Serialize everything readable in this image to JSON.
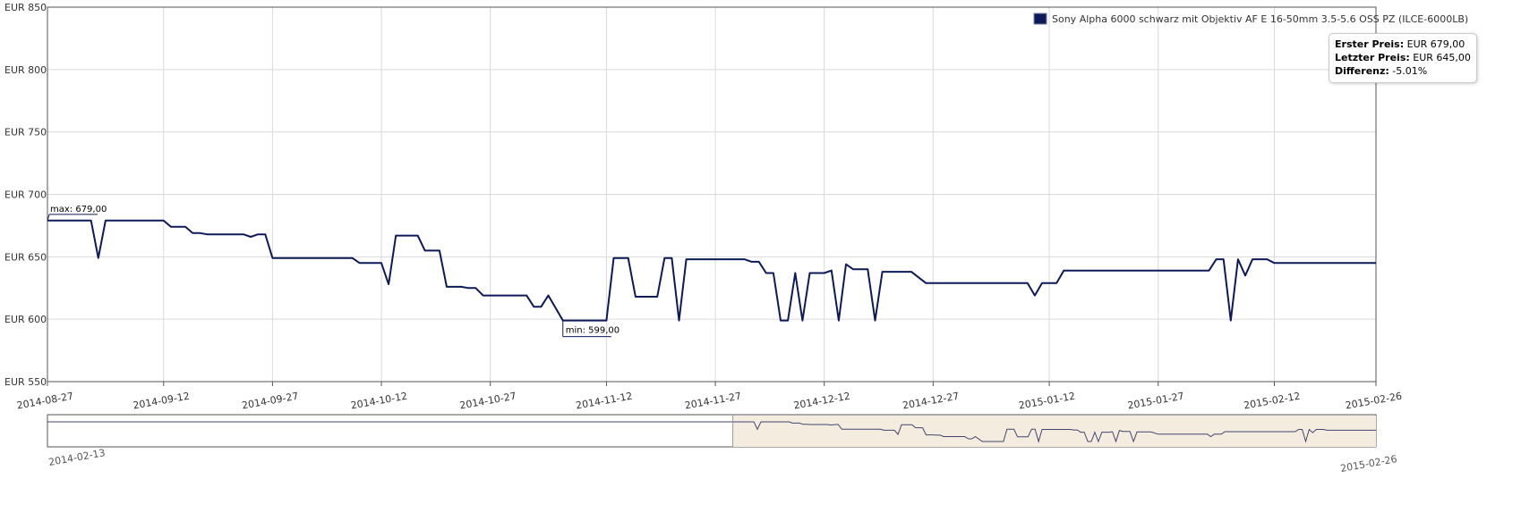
{
  "chart_data": {
    "type": "line",
    "y_tick_labels": [
      "EUR 850",
      "EUR 800",
      "EUR 750",
      "EUR 700",
      "EUR 650",
      "EUR 600",
      "EUR 550"
    ],
    "y_ticks": [
      850,
      800,
      750,
      700,
      650,
      600,
      550
    ],
    "ylim": [
      550,
      850
    ],
    "xlim": [
      "2014-08-27",
      "2015-02-26"
    ],
    "x_tick_labels": [
      "2014-08-27",
      "2014-09-12",
      "2014-09-27",
      "2014-10-12",
      "2014-10-27",
      "2014-11-12",
      "2014-11-27",
      "2014-12-12",
      "2014-12-27",
      "2015-01-12",
      "2015-01-27",
      "2015-02-12",
      "2015-02-26"
    ],
    "grid": true,
    "legend_position": "top-right",
    "series": [
      {
        "name": "Sony Alpha 6000 schwarz mit Objektiv AF E 16-50mm 3.5-5.6 OSS PZ (ILCE-6000LB)",
        "color": "#0d1a59",
        "points": [
          [
            "2014-08-27",
            679
          ],
          [
            "2014-09-02",
            679
          ],
          [
            "2014-09-03",
            649
          ],
          [
            "2014-09-04",
            679
          ],
          [
            "2014-09-12",
            679
          ],
          [
            "2014-09-13",
            674
          ],
          [
            "2014-09-15",
            674
          ],
          [
            "2014-09-16",
            669
          ],
          [
            "2014-09-17",
            669
          ],
          [
            "2014-09-18",
            668
          ],
          [
            "2014-09-23",
            668
          ],
          [
            "2014-09-24",
            666
          ],
          [
            "2014-09-25",
            668
          ],
          [
            "2014-09-26",
            668
          ],
          [
            "2014-09-27",
            649
          ],
          [
            "2014-10-08",
            649
          ],
          [
            "2014-10-09",
            645
          ],
          [
            "2014-10-12",
            645
          ],
          [
            "2014-10-13",
            628
          ],
          [
            "2014-10-14",
            667
          ],
          [
            "2014-10-17",
            667
          ],
          [
            "2014-10-18",
            655
          ],
          [
            "2014-10-20",
            655
          ],
          [
            "2014-10-21",
            626
          ],
          [
            "2014-10-23",
            626
          ],
          [
            "2014-10-24",
            625
          ],
          [
            "2014-10-25",
            625
          ],
          [
            "2014-10-26",
            619
          ],
          [
            "2014-11-01",
            619
          ],
          [
            "2014-11-02",
            610
          ],
          [
            "2014-11-03",
            610
          ],
          [
            "2014-11-04",
            619
          ],
          [
            "2014-11-06",
            599
          ],
          [
            "2014-11-12",
            599
          ],
          [
            "2014-11-13",
            649
          ],
          [
            "2014-11-15",
            649
          ],
          [
            "2014-11-16",
            618
          ],
          [
            "2014-11-19",
            618
          ],
          [
            "2014-11-20",
            649
          ],
          [
            "2014-11-21",
            649
          ],
          [
            "2014-11-22",
            599
          ],
          [
            "2014-11-23",
            648
          ],
          [
            "2014-12-01",
            648
          ],
          [
            "2014-12-02",
            646
          ],
          [
            "2014-12-03",
            646
          ],
          [
            "2014-12-04",
            637
          ],
          [
            "2014-12-05",
            637
          ],
          [
            "2014-12-06",
            599
          ],
          [
            "2014-12-07",
            599
          ],
          [
            "2014-12-08",
            637
          ],
          [
            "2014-12-09",
            599
          ],
          [
            "2014-12-10",
            637
          ],
          [
            "2014-12-12",
            637
          ],
          [
            "2014-12-13",
            639
          ],
          [
            "2014-12-14",
            599
          ],
          [
            "2014-12-15",
            644
          ],
          [
            "2014-12-16",
            640
          ],
          [
            "2014-12-18",
            640
          ],
          [
            "2014-12-19",
            599
          ],
          [
            "2014-12-20",
            638
          ],
          [
            "2014-12-24",
            638
          ],
          [
            "2014-12-26",
            629
          ],
          [
            "2015-01-09",
            629
          ],
          [
            "2015-01-10",
            619
          ],
          [
            "2015-01-11",
            629
          ],
          [
            "2015-01-13",
            629
          ],
          [
            "2015-01-14",
            639
          ],
          [
            "2015-02-03",
            639
          ],
          [
            "2015-02-04",
            648
          ],
          [
            "2015-02-05",
            648
          ],
          [
            "2015-02-06",
            599
          ],
          [
            "2015-02-07",
            648
          ],
          [
            "2015-02-08",
            635
          ],
          [
            "2015-02-09",
            648
          ],
          [
            "2015-02-11",
            648
          ],
          [
            "2015-02-12",
            645
          ],
          [
            "2015-02-26",
            645
          ]
        ]
      }
    ],
    "annotations": {
      "max_label": "max: 679,00",
      "min_label": "min: 599,00"
    },
    "tooltip": {
      "first_label": "Erster Preis:",
      "first_value": "EUR 679,00",
      "last_label": "Letzter Preis:",
      "last_value": "EUR 645,00",
      "diff_label": "Differenz:",
      "diff_value": "-5.01%"
    },
    "navigator": {
      "range_start_label": "2014-02-13",
      "range_end_label": "2015-02-26",
      "range_start": "2014-02-13",
      "range_end": "2015-02-26",
      "selected_start": "2014-08-27",
      "selected_end": "2015-02-26",
      "selection_color": "#f5ece0"
    },
    "colors": {
      "line": "#0d1a59",
      "grid": "#d9d9d9",
      "axis": "#555555",
      "navigator_line": "#40466e"
    }
  }
}
